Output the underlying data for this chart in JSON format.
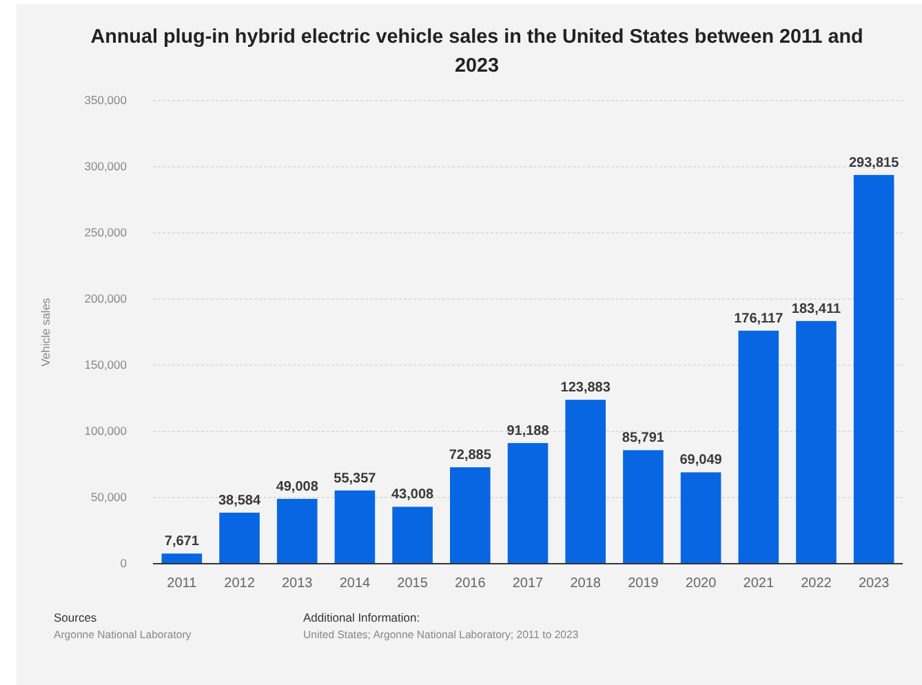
{
  "chart_data": {
    "type": "bar",
    "title": "Annual plug-in hybrid electric vehicle sales in the United States between 2011 and 2023",
    "ylabel": "Vehicle sales",
    "categories": [
      "2011",
      "2012",
      "2013",
      "2014",
      "2015",
      "2016",
      "2017",
      "2018",
      "2019",
      "2020",
      "2021",
      "2022",
      "2023"
    ],
    "values": [
      7671,
      38584,
      49008,
      55357,
      43008,
      72885,
      91188,
      123883,
      85791,
      69049,
      176117,
      183411,
      293815
    ],
    "value_labels": [
      "7,671",
      "38,584",
      "49,008",
      "55,357",
      "43,008",
      "72,885",
      "91,188",
      "123,883",
      "85,791",
      "69,049",
      "176,117",
      "183,411",
      "293,815"
    ],
    "color": "#0866e3",
    "ylim": [
      0,
      350000
    ],
    "yticks": [
      0,
      {
        "value": 50000,
        "label": "50,000"
      },
      {
        "value": 100000,
        "label": "100,000"
      },
      {
        "value": 150000,
        "label": "150,000"
      },
      {
        "value": 200000,
        "label": "200,000"
      },
      {
        "value": 250000,
        "label": "250,000"
      },
      {
        "value": 300000,
        "label": "300,000"
      },
      {
        "value": 350000,
        "label": "350,000"
      }
    ],
    "grid": "y",
    "annotations": [
      "Sources",
      "Argonne National Laboratory",
      "Additional Information:",
      "United States; Argonne National Laboratory; 2011 to 2023"
    ]
  }
}
